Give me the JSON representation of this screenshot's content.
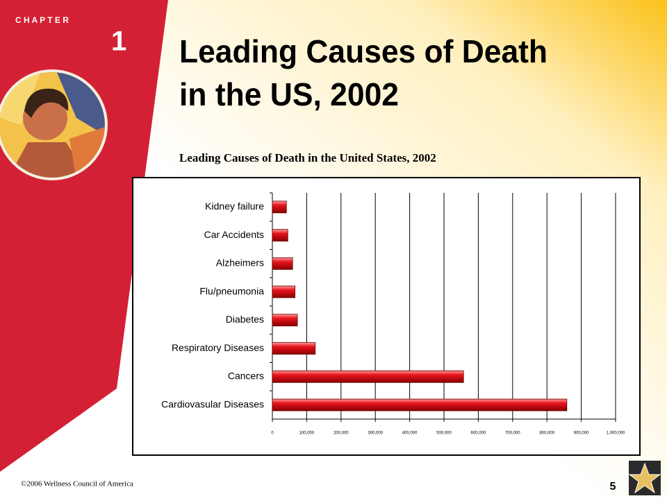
{
  "slide": {
    "chapter_label": "C H A P T E R",
    "chapter_number": "1",
    "title": [
      "Leading Causes of Death",
      "in the US, 2002"
    ],
    "footer": "©2006 Wellness Council of America",
    "page_number": "5"
  },
  "chart_data": {
    "type": "bar",
    "orientation": "horizontal",
    "title": "Leading Causes of Death in the United States, 2002",
    "categories": [
      "Kidney failure",
      "Car Accidents",
      "Alzheimers",
      "Flu/pneumonia",
      "Diabetes",
      "Respiratory Diseases",
      "Cancers",
      "Cardiovasular Diseases"
    ],
    "values": [
      41000,
      45000,
      59000,
      66000,
      73000,
      125000,
      557000,
      858000
    ],
    "color": "#e8141c",
    "xlim": [
      0,
      1000000
    ],
    "xticks": [
      0,
      {
        "value": 100000,
        "label": "100,000"
      },
      {
        "value": 200000,
        "label": "200,000"
      },
      {
        "value": 300000,
        "label": "300,000"
      },
      {
        "value": 400000,
        "label": "400,000"
      },
      {
        "value": 500000,
        "label": "500,000"
      },
      {
        "value": 600000,
        "label": "600,000"
      },
      {
        "value": 700000,
        "label": "700,000"
      },
      {
        "value": 800000,
        "label": "800,000"
      },
      {
        "value": 900000,
        "label": "900,000"
      },
      {
        "value": 1000000,
        "label": "1,000,000"
      }
    ],
    "grid": true
  }
}
